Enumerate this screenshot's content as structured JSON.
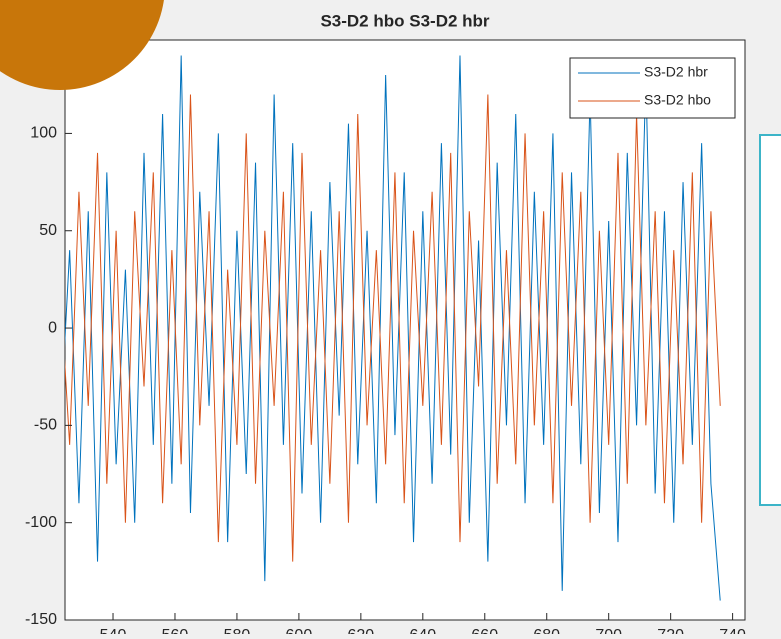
{
  "chart_data": {
    "type": "line",
    "title": "S3-D2 hbo S3-D2 hbr",
    "x": [
      523,
      526,
      529,
      532,
      535,
      538,
      541,
      544,
      547,
      550,
      553,
      556,
      559,
      562,
      565,
      568,
      571,
      574,
      577,
      580,
      583,
      586,
      589,
      592,
      595,
      598,
      601,
      604,
      607,
      610,
      613,
      616,
      619,
      622,
      625,
      628,
      631,
      634,
      637,
      640,
      643,
      646,
      649,
      652,
      655,
      658,
      661,
      664,
      667,
      670,
      673,
      676,
      679,
      682,
      685,
      688,
      691,
      694,
      697,
      700,
      703,
      706,
      709,
      712,
      715,
      718,
      721,
      724,
      727,
      730,
      733,
      736
    ],
    "series": [
      {
        "name": "S3-D2 hbr",
        "color": "#0072bd",
        "values": [
          -50,
          40,
          -90,
          60,
          -120,
          80,
          -70,
          30,
          -100,
          90,
          -60,
          110,
          -80,
          140,
          -95,
          70,
          -40,
          100,
          -110,
          50,
          -75,
          85,
          -130,
          120,
          -60,
          95,
          -85,
          60,
          -100,
          75,
          -45,
          105,
          -70,
          50,
          -90,
          130,
          -55,
          80,
          -110,
          60,
          -80,
          95,
          -65,
          140,
          -100,
          45,
          -120,
          85,
          -50,
          110,
          -90,
          70,
          -60,
          100,
          -135,
          80,
          -70,
          120,
          -95,
          55,
          -110,
          90,
          -50,
          130,
          -85,
          60,
          -100,
          75,
          -60,
          95,
          -80,
          -140
        ]
      },
      {
        "name": "S3-D2 hbo",
        "color": "#d95319",
        "values": [
          20,
          -60,
          70,
          -40,
          90,
          -80,
          50,
          -100,
          60,
          -30,
          80,
          -90,
          40,
          -70,
          120,
          -50,
          60,
          -110,
          30,
          -60,
          100,
          -80,
          50,
          -40,
          70,
          -120,
          90,
          -60,
          40,
          -80,
          60,
          -100,
          110,
          -50,
          40,
          -70,
          80,
          -90,
          50,
          -40,
          70,
          -60,
          90,
          -110,
          60,
          -30,
          120,
          -80,
          40,
          -70,
          100,
          -50,
          60,
          -90,
          80,
          -40,
          70,
          -100,
          50,
          -60,
          90,
          -80,
          110,
          -50,
          60,
          -90,
          40,
          -70,
          80,
          -100,
          60,
          -40
        ]
      }
    ],
    "xlim": [
      524.5,
      744
    ],
    "ylim": [
      -150,
      148
    ],
    "xticks": [
      540,
      560,
      580,
      600,
      620,
      640,
      660,
      680,
      700,
      720,
      740
    ],
    "yticks": [
      -150,
      -100,
      -50,
      0,
      50,
      100
    ],
    "legend": "northeast"
  }
}
